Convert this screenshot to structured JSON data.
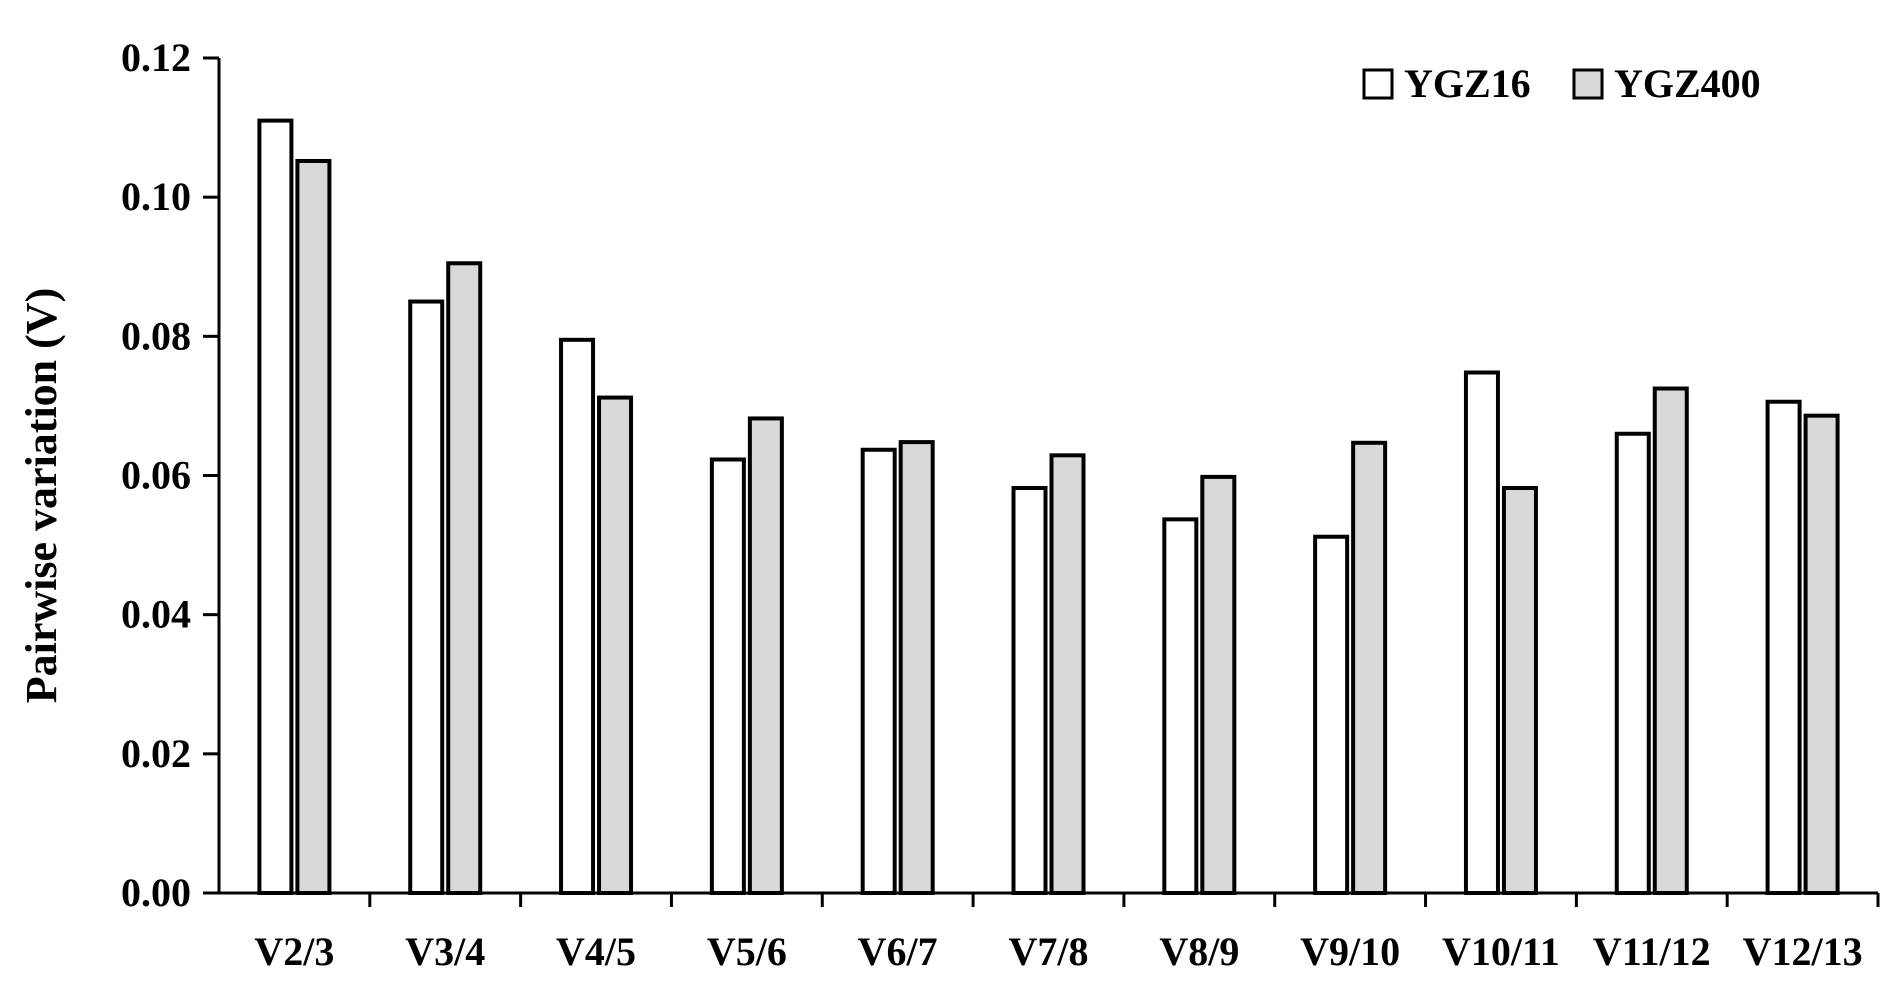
{
  "chart_data": {
    "type": "bar",
    "title": "",
    "xlabel": "",
    "ylabel": "Pairwise variation (V)",
    "ylim": [
      0,
      0.12
    ],
    "yticks": [
      "0.00",
      "0.02",
      "0.04",
      "0.06",
      "0.08",
      "0.10",
      "0.12"
    ],
    "yticks_values": [
      0,
      0.02,
      0.04,
      0.06,
      0.08,
      0.1,
      0.12
    ],
    "grid": false,
    "legend_position": "top-right",
    "categories": [
      "V2/3",
      "V3/4",
      "V4/5",
      "V5/6",
      "V6/7",
      "V7/8",
      "V8/9",
      "V9/10",
      "V10/11",
      "V11/12",
      "V12/13"
    ],
    "series": [
      {
        "name": "YGZ16",
        "color": "#ffffff",
        "values": [
          0.111,
          0.085,
          0.0795,
          0.0623,
          0.0637,
          0.0582,
          0.0537,
          0.0512,
          0.0748,
          0.066,
          0.0706
        ]
      },
      {
        "name": "YGZ400",
        "color": "#d9d9d9",
        "values": [
          0.1052,
          0.0905,
          0.0712,
          0.0682,
          0.0648,
          0.0629,
          0.0598,
          0.0647,
          0.0582,
          0.0725,
          0.0686
        ]
      }
    ],
    "bar_outline_color": "#000000"
  }
}
